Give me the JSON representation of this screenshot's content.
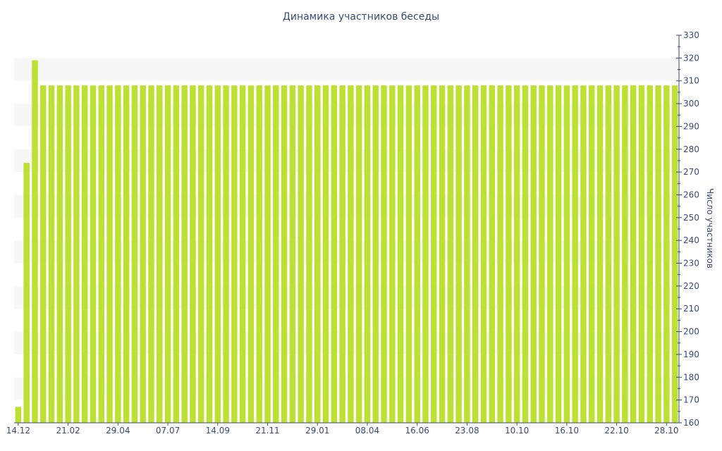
{
  "chart_data": {
    "type": "bar",
    "title": "Динамика участников беседы",
    "xlabel": "",
    "ylabel": "Число участников",
    "ylim": [
      160,
      330
    ],
    "y_ticks": [
      160,
      170,
      180,
      190,
      200,
      210,
      220,
      230,
      240,
      250,
      260,
      270,
      280,
      290,
      300,
      310,
      320,
      330
    ],
    "x_tick_labels": [
      "14.12",
      "21.02",
      "29.04",
      "07.07",
      "14.09",
      "21.11",
      "29.01",
      "08.04",
      "16.06",
      "23.08",
      "10.10",
      "16.10",
      "22.10",
      "28.10"
    ],
    "x_tick_bar_index": [
      0,
      6,
      12,
      18,
      24,
      30,
      36,
      42,
      48,
      54,
      60,
      66,
      72,
      78
    ],
    "values": [
      167,
      274,
      319,
      308,
      308,
      308,
      308,
      308,
      308,
      308,
      308,
      308,
      308,
      308,
      308,
      308,
      308,
      308,
      308,
      308,
      308,
      308,
      308,
      308,
      308,
      308,
      308,
      308,
      308,
      308,
      308,
      308,
      308,
      308,
      308,
      308,
      308,
      308,
      308,
      308,
      308,
      308,
      308,
      308,
      308,
      308,
      308,
      308,
      308,
      308,
      308,
      308,
      308,
      308,
      308,
      308,
      308,
      308,
      308,
      308,
      308,
      308,
      308,
      308,
      308,
      308,
      308,
      308,
      308,
      308,
      308,
      308,
      308,
      308,
      308,
      308,
      308,
      308,
      308,
      308
    ],
    "bar_color": "#bde132",
    "text_color": "#3a4a7a",
    "band_color": "#f7f7f7",
    "axis_position": "right",
    "grid": false
  }
}
